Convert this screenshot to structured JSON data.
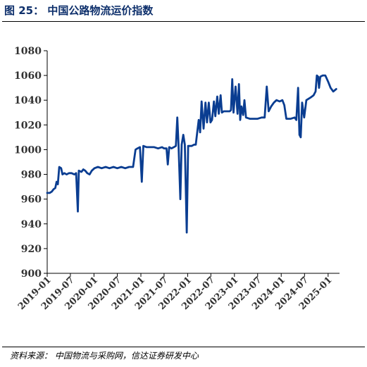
{
  "figure": {
    "caption": "图 25：  中国公路物流运价指数",
    "source": "资料来源：  中国物流与采购网，信达证券研发中心"
  },
  "colors": {
    "line": "#0a3d91",
    "caption": "#0d2f6b",
    "axis": "#000000"
  },
  "chart_data": {
    "type": "line",
    "title": "",
    "xlabel": "",
    "ylabel": "",
    "ylim": [
      900,
      1080
    ],
    "yticks": [
      900,
      920,
      940,
      960,
      980,
      1000,
      1020,
      1040,
      1060,
      1080
    ],
    "xlim": [
      "2019-01-01",
      "2025-03-31"
    ],
    "xticks": [
      "2019-01",
      "2019-07",
      "2020-01",
      "2020-07",
      "2021-01",
      "2021-07",
      "2022-01",
      "2022-07",
      "2023-01",
      "2023-07",
      "2024-01",
      "2024-07",
      "2025-01"
    ],
    "grid": false,
    "legend": "none",
    "series": [
      {
        "points": [
          [
            "2019-01-01",
            965
          ],
          [
            "2019-01-20",
            965
          ],
          [
            "2019-02-05",
            966
          ],
          [
            "2019-02-20",
            968
          ],
          [
            "2019-03-05",
            969
          ],
          [
            "2019-03-15",
            974
          ],
          [
            "2019-03-25",
            972
          ],
          [
            "2019-04-05",
            986
          ],
          [
            "2019-04-20",
            985
          ],
          [
            "2019-04-30",
            980
          ],
          [
            "2019-05-15",
            981
          ],
          [
            "2019-06-01",
            980
          ],
          [
            "2019-06-20",
            981
          ],
          [
            "2019-07-10",
            981
          ],
          [
            "2019-08-01",
            980
          ],
          [
            "2019-08-15",
            981
          ],
          [
            "2019-08-28",
            950
          ],
          [
            "2019-09-05",
            983
          ],
          [
            "2019-09-25",
            982
          ],
          [
            "2019-10-10",
            984
          ],
          [
            "2019-10-25",
            983
          ],
          [
            "2019-11-10",
            981
          ],
          [
            "2019-11-28",
            980
          ],
          [
            "2019-12-15",
            983
          ],
          [
            "2020-01-05",
            985
          ],
          [
            "2020-02-01",
            986
          ],
          [
            "2020-03-01",
            985
          ],
          [
            "2020-04-01",
            986
          ],
          [
            "2020-05-01",
            985
          ],
          [
            "2020-06-01",
            986
          ],
          [
            "2020-07-01",
            985
          ],
          [
            "2020-08-01",
            986
          ],
          [
            "2020-09-01",
            985
          ],
          [
            "2020-10-01",
            986
          ],
          [
            "2020-11-01",
            986
          ],
          [
            "2020-11-20",
            1000
          ],
          [
            "2020-12-05",
            1001
          ],
          [
            "2020-12-25",
            1002
          ],
          [
            "2021-01-08",
            974
          ],
          [
            "2021-01-20",
            1003
          ],
          [
            "2021-02-15",
            1002
          ],
          [
            "2021-03-15",
            1002
          ],
          [
            "2021-04-15",
            1002
          ],
          [
            "2021-05-15",
            1001
          ],
          [
            "2021-06-15",
            1002
          ],
          [
            "2021-07-01",
            1001
          ],
          [
            "2021-07-20",
            1001
          ],
          [
            "2021-07-30",
            988
          ],
          [
            "2021-08-10",
            1002
          ],
          [
            "2021-08-28",
            1001
          ],
          [
            "2021-09-15",
            1002
          ],
          [
            "2021-10-01",
            1003
          ],
          [
            "2021-10-12",
            1026
          ],
          [
            "2021-10-22",
            1003
          ],
          [
            "2021-11-05",
            960
          ],
          [
            "2021-11-15",
            1004
          ],
          [
            "2021-11-28",
            1012
          ],
          [
            "2021-12-10",
            1004
          ],
          [
            "2021-12-25",
            933
          ],
          [
            "2022-01-05",
            1003
          ],
          [
            "2022-02-01",
            1003
          ],
          [
            "2022-02-20",
            1004
          ],
          [
            "2022-03-05",
            1004
          ],
          [
            "2022-03-18",
            1015
          ],
          [
            "2022-03-28",
            1024
          ],
          [
            "2022-04-08",
            1014
          ],
          [
            "2022-04-20",
            1039
          ],
          [
            "2022-05-05",
            1017
          ],
          [
            "2022-05-20",
            1038
          ],
          [
            "2022-06-01",
            1022
          ],
          [
            "2022-06-15",
            1038
          ],
          [
            "2022-06-28",
            1022
          ],
          [
            "2022-07-10",
            1024
          ],
          [
            "2022-07-25",
            1039
          ],
          [
            "2022-08-05",
            1027
          ],
          [
            "2022-08-20",
            1043
          ],
          [
            "2022-09-01",
            1029
          ],
          [
            "2022-09-15",
            1044
          ],
          [
            "2022-09-25",
            1030
          ],
          [
            "2022-10-10",
            1031
          ],
          [
            "2022-11-01",
            1031
          ],
          [
            "2022-11-25",
            1031
          ],
          [
            "2022-12-05",
            1032
          ],
          [
            "2022-12-15",
            1057
          ],
          [
            "2022-12-25",
            1030
          ],
          [
            "2023-01-10",
            1051
          ],
          [
            "2023-01-25",
            1029
          ],
          [
            "2023-02-05",
            1053
          ],
          [
            "2023-02-15",
            1024
          ],
          [
            "2023-02-25",
            1035
          ],
          [
            "2023-03-10",
            1028
          ],
          [
            "2023-03-20",
            1040
          ],
          [
            "2023-04-01",
            1026
          ],
          [
            "2023-05-01",
            1025
          ],
          [
            "2023-06-01",
            1025
          ],
          [
            "2023-07-01",
            1025
          ],
          [
            "2023-08-01",
            1026
          ],
          [
            "2023-08-25",
            1026
          ],
          [
            "2023-09-10",
            1051
          ],
          [
            "2023-09-25",
            1031
          ],
          [
            "2023-10-15",
            1035
          ],
          [
            "2023-11-05",
            1038
          ],
          [
            "2023-11-25",
            1040
          ],
          [
            "2023-12-20",
            1039
          ],
          [
            "2024-01-10",
            1040
          ],
          [
            "2024-01-25",
            1036
          ],
          [
            "2024-02-10",
            1025
          ],
          [
            "2024-03-15",
            1025
          ],
          [
            "2024-04-15",
            1026
          ],
          [
            "2024-04-28",
            1024
          ],
          [
            "2024-05-12",
            1050
          ],
          [
            "2024-05-22",
            1012
          ],
          [
            "2024-06-01",
            1010
          ],
          [
            "2024-06-12",
            1038
          ],
          [
            "2024-06-28",
            1026
          ],
          [
            "2024-07-15",
            1040
          ],
          [
            "2024-08-15",
            1042
          ],
          [
            "2024-09-10",
            1044
          ],
          [
            "2024-09-25",
            1047
          ],
          [
            "2024-10-05",
            1060
          ],
          [
            "2024-10-15",
            1059
          ],
          [
            "2024-10-22",
            1050
          ],
          [
            "2024-11-01",
            1059
          ],
          [
            "2024-11-20",
            1060
          ],
          [
            "2024-12-10",
            1060
          ],
          [
            "2025-01-01",
            1055
          ],
          [
            "2025-01-20",
            1050
          ],
          [
            "2025-02-10",
            1047
          ],
          [
            "2025-03-05",
            1049
          ]
        ]
      }
    ]
  }
}
